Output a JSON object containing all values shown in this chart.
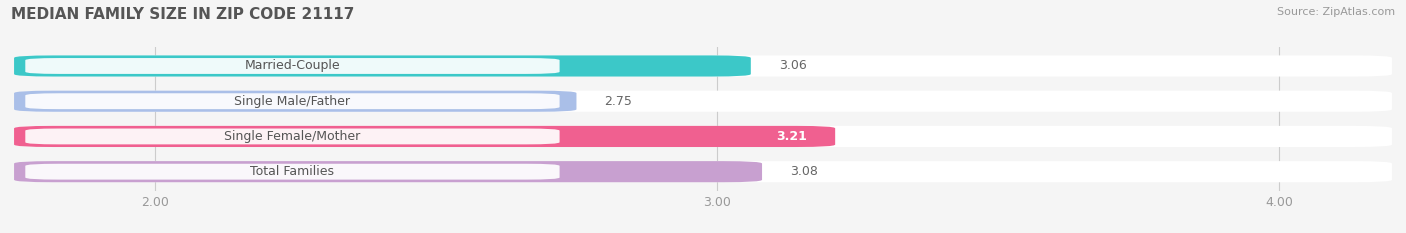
{
  "title": "MEDIAN FAMILY SIZE IN ZIP CODE 21117",
  "source": "Source: ZipAtlas.com",
  "categories": [
    "Married-Couple",
    "Single Male/Father",
    "Single Female/Mother",
    "Total Families"
  ],
  "values": [
    3.06,
    2.75,
    3.21,
    3.08
  ],
  "bar_colors": [
    "#3cc8c8",
    "#aabfe8",
    "#f06090",
    "#c8a0d0"
  ],
  "bar_labels_inside": [
    false,
    false,
    true,
    false
  ],
  "label_values": [
    "3.06",
    "2.75",
    "3.21",
    "3.08"
  ],
  "xlim": [
    1.75,
    4.2
  ],
  "xticks": [
    2.0,
    3.0,
    4.0
  ],
  "xtick_labels": [
    "2.00",
    "3.00",
    "4.00"
  ],
  "background_color": "#f5f5f5",
  "bar_background_color": "#e8e8e8",
  "title_fontsize": 11,
  "source_fontsize": 8,
  "label_fontsize": 9,
  "tick_fontsize": 9,
  "cat_label_fontsize": 9,
  "cat_label_text_color": "#555555"
}
